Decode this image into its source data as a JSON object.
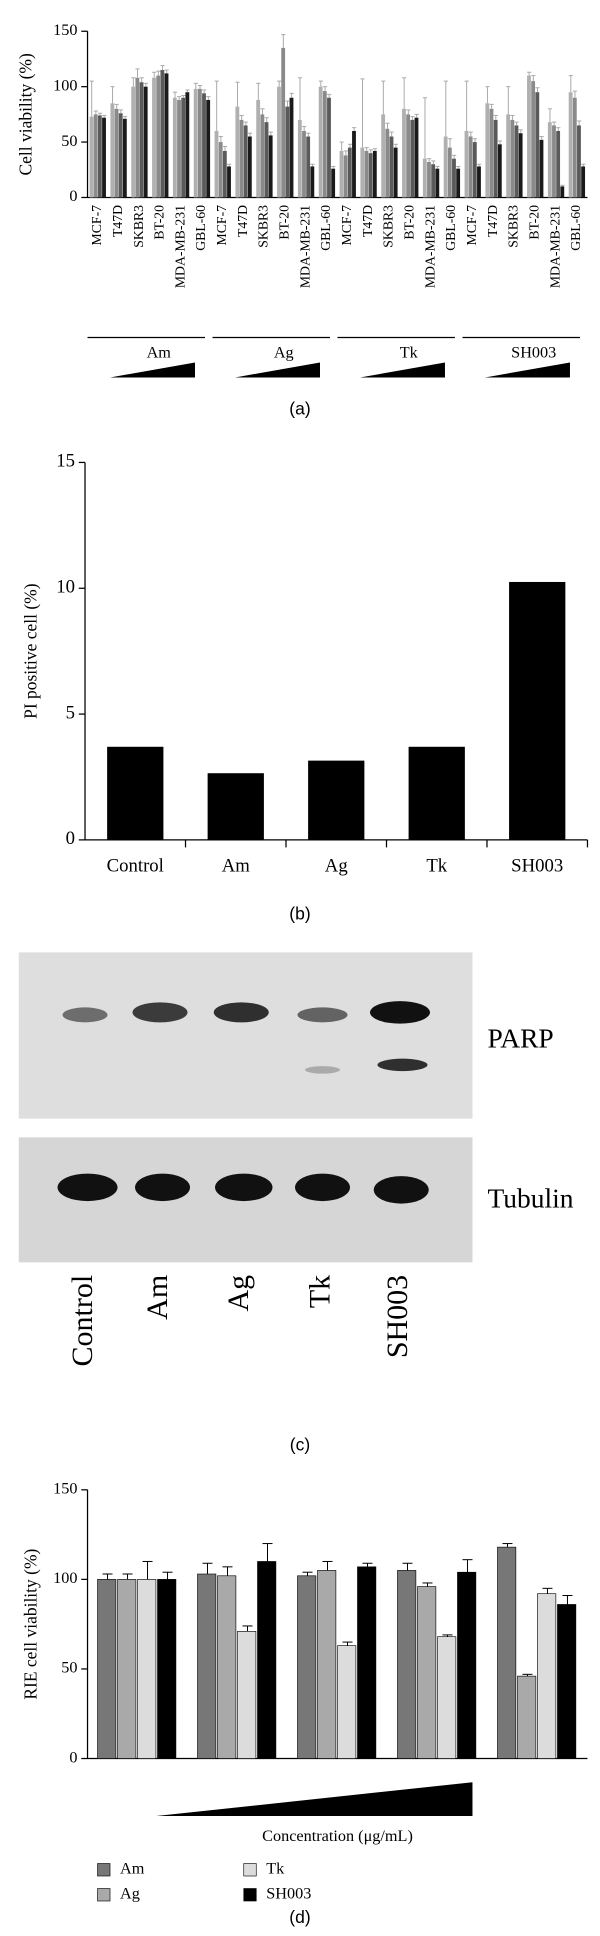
{
  "chart_data": [
    {
      "type": "bar",
      "panel_label": "(a)",
      "ylabel": "Cell viability (%)",
      "categories": [
        "MCF-7",
        "T47D",
        "SKBR3",
        "BT-20",
        "MDA-MB-231",
        "GBL-60",
        "MCF-7",
        "T47D",
        "SKBR3",
        "BT-20",
        "MDA-MB-231",
        "GBL-60",
        "MCF-7",
        "T47D",
        "SKBR3",
        "BT-20",
        "MDA-MB-231",
        "GBL-60",
        "MCF-7",
        "T47D",
        "SKBR3",
        "BT-20",
        "MDA-MB-231",
        "GBL-60"
      ],
      "groups": [
        "Am",
        "Ag",
        "Tk",
        "SH003"
      ],
      "series": [
        {
          "color": "#b0b0b0",
          "values": [
            73,
            85,
            100,
            108,
            90,
            98,
            60,
            82,
            88,
            100,
            70,
            100,
            42,
            45,
            75,
            80,
            35,
            55,
            60,
            85,
            75,
            110,
            68,
            95
          ],
          "errors": [
            32,
            15,
            8,
            5,
            5,
            5,
            45,
            22,
            15,
            5,
            38,
            5,
            8,
            62,
            30,
            28,
            55,
            50,
            45,
            15,
            25,
            3,
            12,
            15
          ]
        },
        {
          "color": "#8a8a8a",
          "values": [
            75,
            80,
            108,
            110,
            88,
            98,
            50,
            70,
            75,
            135,
            60,
            96,
            38,
            42,
            62,
            75,
            32,
            45,
            55,
            80,
            70,
            105,
            65,
            90
          ],
          "errors": [
            3,
            4,
            8,
            4,
            3,
            3,
            5,
            4,
            5,
            12,
            4,
            4,
            4,
            3,
            5,
            4,
            3,
            8,
            4,
            4,
            4,
            5,
            3,
            6
          ]
        },
        {
          "color": "#5a5a5a",
          "values": [
            74,
            76,
            104,
            115,
            90,
            94,
            42,
            65,
            68,
            82,
            55,
            90,
            45,
            40,
            55,
            70,
            30,
            35,
            50,
            70,
            65,
            95,
            60,
            65
          ],
          "errors": [
            2,
            3,
            4,
            4,
            2,
            3,
            4,
            3,
            4,
            5,
            3,
            3,
            3,
            3,
            4,
            3,
            3,
            3,
            3,
            4,
            3,
            4,
            3,
            4
          ]
        },
        {
          "color": "#1a1a1a",
          "values": [
            72,
            71,
            100,
            112,
            95,
            88,
            28,
            55,
            56,
            90,
            28,
            26,
            60,
            42,
            45,
            72,
            26,
            26,
            28,
            48,
            58,
            52,
            10,
            28
          ],
          "errors": [
            2,
            2,
            3,
            3,
            2,
            3,
            2,
            3,
            3,
            4,
            2,
            2,
            3,
            2,
            3,
            3,
            2,
            2,
            2,
            3,
            3,
            3,
            1,
            2
          ]
        }
      ],
      "ylim": [
        0,
        150
      ],
      "yticks": [
        0,
        50,
        100,
        150
      ]
    },
    {
      "type": "bar",
      "panel_label": "(b)",
      "ylabel": "PI positive cell (%)",
      "categories": [
        "Control",
        "Am",
        "Ag",
        "Tk",
        "SH003"
      ],
      "values": [
        3.7,
        2.65,
        3.15,
        3.7,
        10.25
      ],
      "color": "#000000",
      "ylim": [
        0,
        15
      ],
      "yticks": [
        0,
        5,
        10,
        15
      ]
    },
    {
      "type": "bar",
      "panel_label": "(d)",
      "ylabel": "RIE cell viability (%)",
      "xlabel": "Concentration (μg/mL)",
      "categories": [
        null,
        null,
        null,
        null,
        null
      ],
      "series": [
        {
          "name": "Am",
          "color": "#777777",
          "values": [
            100,
            103,
            102,
            105,
            118
          ],
          "errors": [
            3,
            6,
            2,
            4,
            2
          ]
        },
        {
          "name": "Ag",
          "color": "#a9a9a9",
          "values": [
            100,
            102,
            105,
            96,
            46
          ],
          "errors": [
            3,
            5,
            5,
            2,
            1
          ]
        },
        {
          "name": "Tk",
          "color": "#dcdcdc",
          "values": [
            100,
            71,
            63,
            68,
            92
          ],
          "errors": [
            10,
            3,
            2,
            1,
            3
          ]
        },
        {
          "name": "SH003",
          "color": "#000000",
          "values": [
            100,
            110,
            107,
            104,
            86
          ],
          "errors": [
            4,
            10,
            2,
            7,
            5
          ]
        }
      ],
      "ylim": [
        0,
        150
      ],
      "yticks": [
        0,
        50,
        100,
        150
      ]
    }
  ],
  "blot": {
    "panel_label": "(c)",
    "bands": [
      "PARP",
      "Tubulin"
    ],
    "lanes": [
      "Control",
      "Am",
      "Ag",
      "Tk",
      "SH003"
    ]
  }
}
